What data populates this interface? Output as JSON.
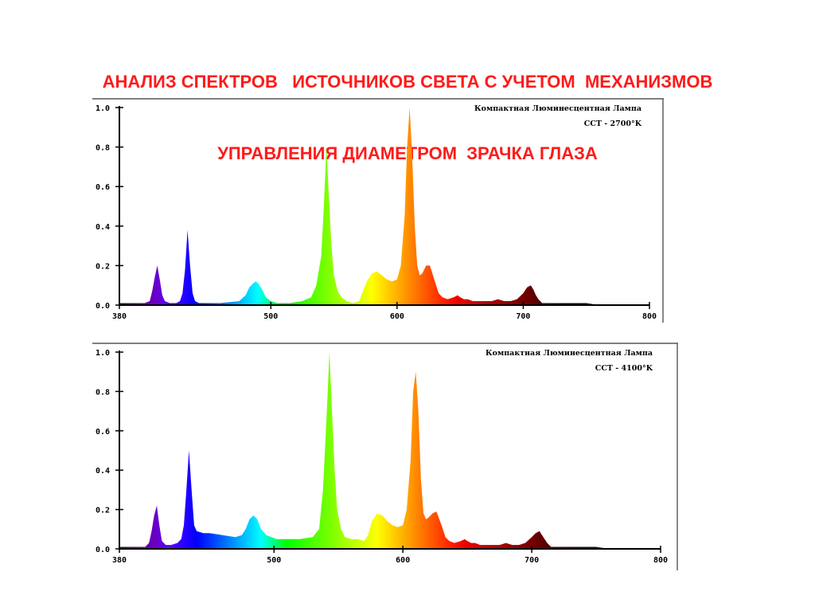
{
  "title": {
    "line1": "АНАЛИЗ СПЕКТРОВ   ИСТОЧНИКОВ СВЕТА С УЧЕТОМ  МЕХАНИЗМОВ",
    "line2": "УПРАВЛЕНИЯ ДИАМЕТРОМ  ЗРАЧКА ГЛАЗА"
  },
  "colors": {
    "title": "#ff1a1a",
    "axis": "#000000",
    "background": "#ffffff"
  },
  "chart_data": [
    {
      "type": "area",
      "title": "Компактная Люминесцентная Лампа",
      "subtitle": "CCT - 2700°K",
      "xlim": [
        380,
        800
      ],
      "ylim": [
        0,
        1.0
      ],
      "x_ticks": [
        "380",
        "500",
        "600",
        "700",
        "800"
      ],
      "y_ticks": [
        "0.0",
        "0.2",
        "0.4",
        "0.6",
        "0.8",
        "1.0"
      ],
      "legend_position": "top-right",
      "x": [
        380,
        395,
        400,
        404,
        406,
        408,
        410,
        412,
        414,
        416,
        420,
        425,
        428,
        430,
        432,
        434,
        436,
        438,
        440,
        443,
        445,
        460,
        475,
        480,
        483,
        486,
        488,
        490,
        493,
        496,
        500,
        505,
        515,
        525,
        532,
        536,
        540,
        542,
        544,
        546,
        548,
        550,
        553,
        556,
        560,
        565,
        570,
        573,
        576,
        580,
        584,
        588,
        592,
        596,
        600,
        603,
        606,
        608,
        610,
        612,
        614,
        616,
        618,
        620,
        623,
        626,
        630,
        633,
        636,
        640,
        645,
        648,
        650,
        653,
        656,
        660,
        665,
        670,
        675,
        680,
        685,
        690,
        695,
        700,
        703,
        706,
        708,
        710,
        712,
        715,
        720,
        730,
        740,
        750,
        760,
        770,
        780,
        790,
        800
      ],
      "y": [
        0.01,
        0.01,
        0.01,
        0.02,
        0.07,
        0.14,
        0.2,
        0.13,
        0.05,
        0.02,
        0.01,
        0.01,
        0.02,
        0.06,
        0.18,
        0.38,
        0.2,
        0.06,
        0.02,
        0.01,
        0.01,
        0.01,
        0.02,
        0.05,
        0.09,
        0.11,
        0.12,
        0.11,
        0.08,
        0.04,
        0.02,
        0.01,
        0.01,
        0.02,
        0.04,
        0.1,
        0.25,
        0.5,
        0.8,
        0.55,
        0.3,
        0.15,
        0.07,
        0.04,
        0.02,
        0.01,
        0.02,
        0.07,
        0.12,
        0.16,
        0.17,
        0.15,
        0.13,
        0.12,
        0.13,
        0.2,
        0.45,
        0.8,
        1.0,
        0.75,
        0.4,
        0.2,
        0.15,
        0.16,
        0.2,
        0.2,
        0.12,
        0.06,
        0.04,
        0.03,
        0.04,
        0.05,
        0.04,
        0.03,
        0.03,
        0.02,
        0.02,
        0.02,
        0.02,
        0.03,
        0.02,
        0.02,
        0.03,
        0.06,
        0.09,
        0.1,
        0.08,
        0.05,
        0.03,
        0.01,
        0.01,
        0.01,
        0.01,
        0.01,
        0.0,
        0.0,
        0.0,
        0.0,
        0.0
      ]
    },
    {
      "type": "area",
      "title": "Компактная Люминесцентная Лампа",
      "subtitle": "CCT - 4100°K",
      "xlim": [
        380,
        800
      ],
      "ylim": [
        0,
        1.0
      ],
      "x_ticks": [
        "380",
        "500",
        "600",
        "700",
        "800"
      ],
      "y_ticks": [
        "0.0",
        "0.2",
        "0.4",
        "0.6",
        "0.8",
        "1.0"
      ],
      "legend_position": "top-right",
      "x": [
        380,
        395,
        400,
        403,
        405,
        407,
        409,
        411,
        413,
        416,
        420,
        425,
        428,
        430,
        432,
        434,
        436,
        438,
        440,
        445,
        450,
        460,
        470,
        475,
        478,
        481,
        484,
        487,
        490,
        494,
        498,
        502,
        510,
        520,
        530,
        535,
        538,
        541,
        543,
        545,
        547,
        549,
        552,
        555,
        560,
        565,
        570,
        573,
        576,
        580,
        584,
        588,
        592,
        596,
        600,
        603,
        606,
        608,
        610,
        612,
        614,
        616,
        618,
        620,
        623,
        626,
        630,
        633,
        636,
        640,
        645,
        648,
        650,
        653,
        656,
        660,
        665,
        670,
        675,
        680,
        685,
        690,
        695,
        700,
        703,
        706,
        708,
        710,
        712,
        715,
        720,
        730,
        740,
        750,
        760,
        770,
        780,
        790,
        800
      ],
      "y": [
        0.01,
        0.01,
        0.01,
        0.03,
        0.09,
        0.17,
        0.22,
        0.12,
        0.04,
        0.02,
        0.02,
        0.03,
        0.05,
        0.12,
        0.3,
        0.5,
        0.3,
        0.12,
        0.09,
        0.08,
        0.08,
        0.07,
        0.06,
        0.07,
        0.1,
        0.15,
        0.17,
        0.15,
        0.1,
        0.07,
        0.06,
        0.05,
        0.05,
        0.05,
        0.06,
        0.1,
        0.3,
        0.7,
        1.0,
        0.7,
        0.4,
        0.2,
        0.1,
        0.06,
        0.05,
        0.05,
        0.04,
        0.07,
        0.14,
        0.18,
        0.17,
        0.14,
        0.12,
        0.11,
        0.12,
        0.2,
        0.45,
        0.8,
        0.9,
        0.7,
        0.35,
        0.18,
        0.15,
        0.16,
        0.18,
        0.19,
        0.12,
        0.06,
        0.04,
        0.03,
        0.04,
        0.05,
        0.04,
        0.03,
        0.03,
        0.02,
        0.02,
        0.02,
        0.02,
        0.03,
        0.02,
        0.02,
        0.03,
        0.06,
        0.08,
        0.09,
        0.07,
        0.05,
        0.03,
        0.01,
        0.01,
        0.01,
        0.01,
        0.01,
        0.0,
        0.0,
        0.0,
        0.0,
        0.0
      ]
    }
  ]
}
